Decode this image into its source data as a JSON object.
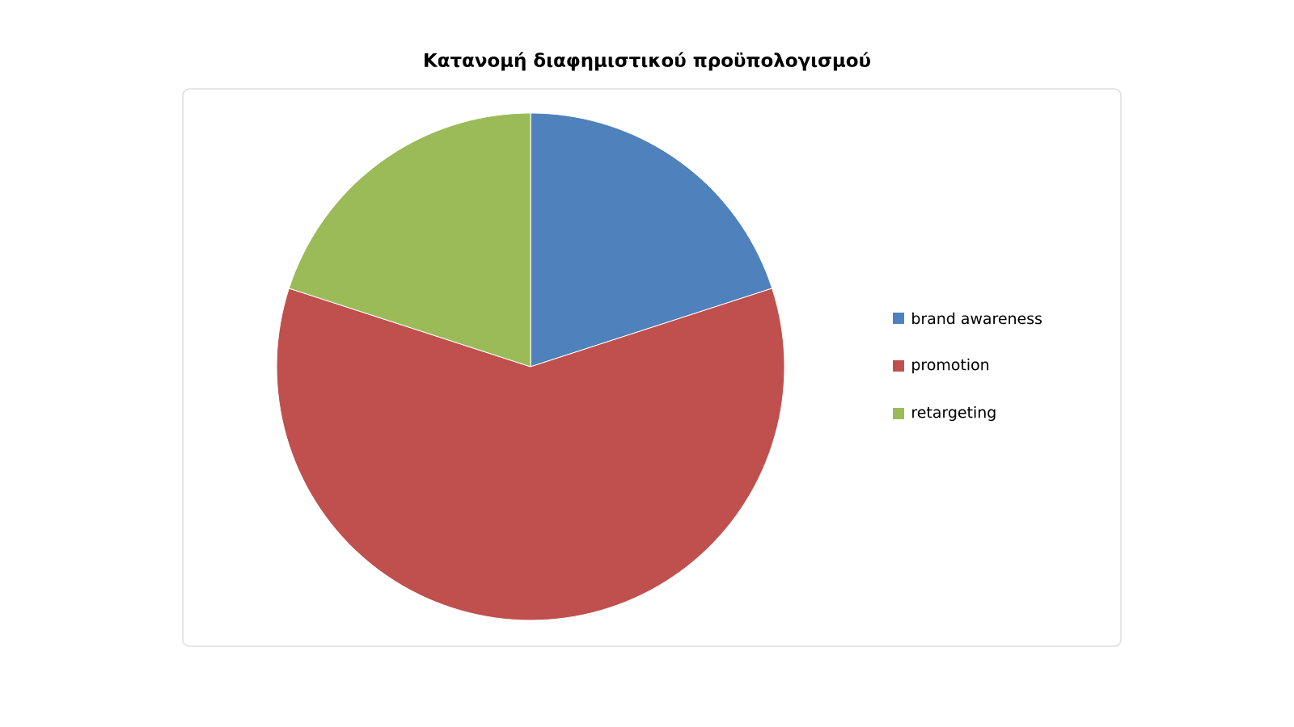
{
  "chart_data": {
    "type": "pie",
    "title": "Κατανομή διαφημιστικού προϋπολογισμού",
    "categories": [
      "brand awareness",
      "promotion",
      "retargeting"
    ],
    "values": [
      20,
      60,
      20
    ],
    "colors": [
      "#4f81bd",
      "#c0504d",
      "#9bbb59"
    ],
    "legend": "right"
  }
}
